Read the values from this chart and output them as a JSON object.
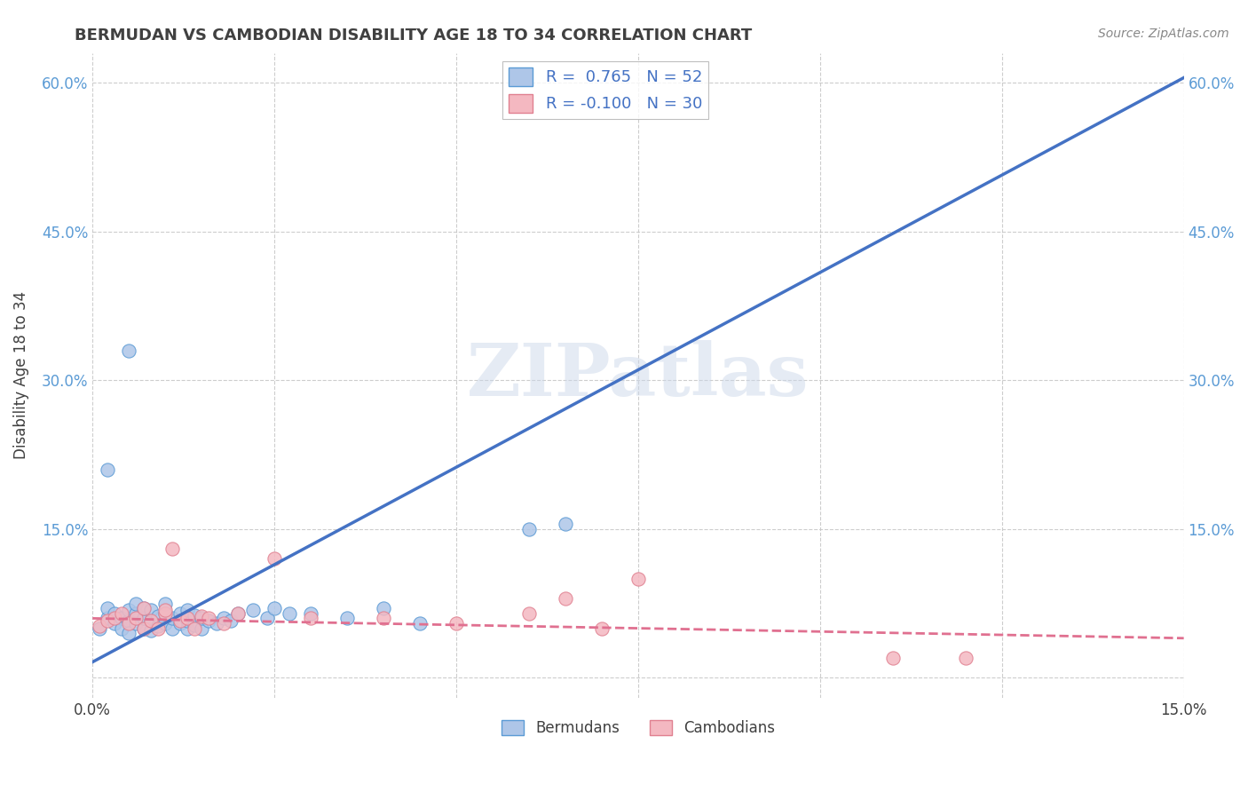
{
  "title": "BERMUDAN VS CAMBODIAN DISABILITY AGE 18 TO 34 CORRELATION CHART",
  "source": "Source: ZipAtlas.com",
  "ylabel": "Disability Age 18 to 34",
  "xlim": [
    0.0,
    0.15
  ],
  "ylim": [
    -0.02,
    0.63
  ],
  "x_tick_positions": [
    0.0,
    0.025,
    0.05,
    0.075,
    0.1,
    0.125,
    0.15
  ],
  "x_tick_labels": [
    "0.0%",
    "",
    "",
    "",
    "",
    "",
    "15.0%"
  ],
  "y_tick_positions": [
    0.0,
    0.15,
    0.3,
    0.45,
    0.6
  ],
  "y_tick_labels_left": [
    "",
    "15.0%",
    "30.0%",
    "45.0%",
    "60.0%"
  ],
  "y_tick_labels_right": [
    "",
    "15.0%",
    "30.0%",
    "45.0%",
    "60.0%"
  ],
  "bermudan_R": 0.765,
  "bermudan_N": 52,
  "cambodian_R": -0.1,
  "cambodian_N": 30,
  "bermudan_scatter_color": "#aec6e8",
  "bermudan_edge_color": "#5b9bd5",
  "cambodian_scatter_color": "#f4b8c1",
  "cambodian_edge_color": "#e08090",
  "line_bermudan_color": "#4472c4",
  "line_cambodian_color": "#e07090",
  "watermark_color": "#ccd8ea",
  "title_color": "#404040",
  "tick_label_color": "#5b9bd5",
  "ylabel_color": "#404040",
  "source_color": "#888888",
  "legend_label_color": "#4472c4",
  "bottom_legend_color": "#404040",
  "bermudan_line_x0": 0.0,
  "bermudan_line_y0": 0.016,
  "bermudan_line_x1": 0.15,
  "bermudan_line_y1": 0.605,
  "cambodian_line_x0": 0.0,
  "cambodian_line_y0": 0.06,
  "cambodian_line_x1": 0.15,
  "cambodian_line_y1": 0.04,
  "bermudan_x": [
    0.001,
    0.002,
    0.002,
    0.003,
    0.003,
    0.004,
    0.004,
    0.005,
    0.005,
    0.005,
    0.006,
    0.006,
    0.006,
    0.007,
    0.007,
    0.007,
    0.008,
    0.008,
    0.008,
    0.009,
    0.009,
    0.01,
    0.01,
    0.01,
    0.011,
    0.011,
    0.012,
    0.012,
    0.013,
    0.013,
    0.013,
    0.014,
    0.014,
    0.015,
    0.015,
    0.016,
    0.017,
    0.018,
    0.019,
    0.02,
    0.022,
    0.024,
    0.025,
    0.027,
    0.03,
    0.035,
    0.04,
    0.045,
    0.06,
    0.065,
    0.002,
    0.005
  ],
  "bermudan_y": [
    0.05,
    0.06,
    0.07,
    0.055,
    0.065,
    0.06,
    0.05,
    0.058,
    0.068,
    0.045,
    0.055,
    0.065,
    0.075,
    0.05,
    0.06,
    0.07,
    0.048,
    0.058,
    0.068,
    0.052,
    0.062,
    0.055,
    0.065,
    0.075,
    0.05,
    0.06,
    0.055,
    0.065,
    0.05,
    0.058,
    0.068,
    0.053,
    0.063,
    0.05,
    0.06,
    0.058,
    0.055,
    0.06,
    0.058,
    0.065,
    0.068,
    0.06,
    0.07,
    0.065,
    0.065,
    0.06,
    0.07,
    0.055,
    0.15,
    0.155,
    0.21,
    0.33
  ],
  "cambodian_x": [
    0.001,
    0.002,
    0.003,
    0.004,
    0.005,
    0.006,
    0.007,
    0.007,
    0.008,
    0.009,
    0.01,
    0.01,
    0.011,
    0.012,
    0.013,
    0.014,
    0.015,
    0.016,
    0.018,
    0.02,
    0.025,
    0.03,
    0.04,
    0.05,
    0.06,
    0.065,
    0.07,
    0.075,
    0.11,
    0.12
  ],
  "cambodian_y": [
    0.052,
    0.058,
    0.06,
    0.065,
    0.055,
    0.06,
    0.05,
    0.07,
    0.058,
    0.05,
    0.065,
    0.068,
    0.13,
    0.058,
    0.06,
    0.05,
    0.062,
    0.06,
    0.055,
    0.065,
    0.12,
    0.06,
    0.06,
    0.055,
    0.065,
    0.08,
    0.05,
    0.1,
    0.02,
    0.02
  ]
}
